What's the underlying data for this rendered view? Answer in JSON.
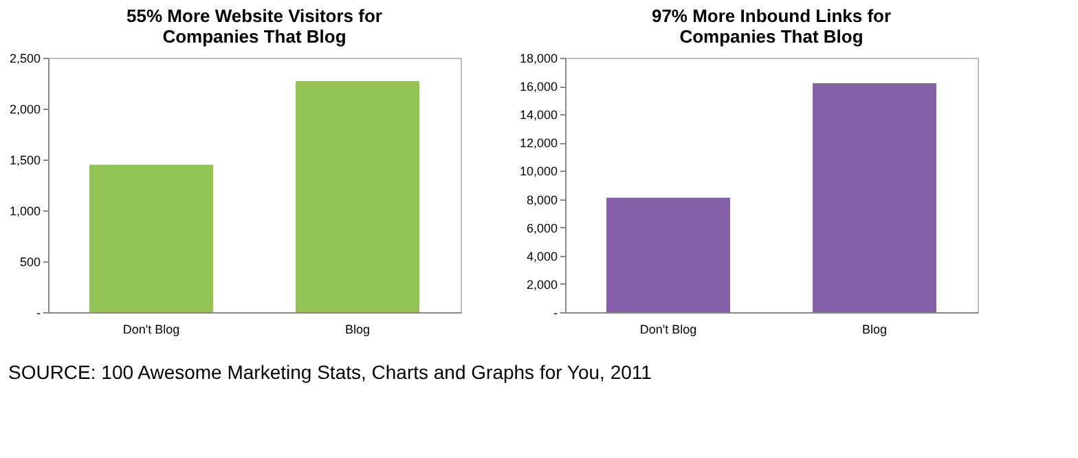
{
  "chart_data": [
    {
      "type": "bar",
      "title": "55% More Website Visitors for Companies That Blog",
      "categories": [
        "Don't Blog",
        "Blog"
      ],
      "values": [
        1450,
        2270
      ],
      "color": "#92c353",
      "ylim": [
        0,
        2500
      ],
      "yticks": [
        {
          "value": 0,
          "label": "-"
        },
        {
          "value": 500,
          "label": "500"
        },
        {
          "value": 1000,
          "label": "1,000"
        },
        {
          "value": 1500,
          "label": "1,500"
        },
        {
          "value": 2000,
          "label": "2,000"
        },
        {
          "value": 2500,
          "label": "2,500"
        }
      ],
      "grid": false,
      "legend": false,
      "annotations": [
        "SOURCE: 100 Awesome Marketing Stats, Charts and Graphs for You, 2011"
      ]
    },
    {
      "type": "bar",
      "title": "97% More Inbound Links for Companies That Blog",
      "categories": [
        "Don't Blog",
        "Blog"
      ],
      "values": [
        8100,
        16200
      ],
      "color": "#8560a8",
      "ylim": [
        0,
        18000
      ],
      "yticks": [
        {
          "value": 0,
          "label": "-"
        },
        {
          "value": 2000,
          "label": "2,000"
        },
        {
          "value": 4000,
          "label": "4,000"
        },
        {
          "value": 6000,
          "label": "6,000"
        },
        {
          "value": 8000,
          "label": "8,000"
        },
        {
          "value": 10000,
          "label": "10,000"
        },
        {
          "value": 12000,
          "label": "12,000"
        },
        {
          "value": 14000,
          "label": "14,000"
        },
        {
          "value": 16000,
          "label": "16,000"
        },
        {
          "value": 18000,
          "label": "18,000"
        }
      ],
      "grid": false,
      "legend": false
    }
  ]
}
